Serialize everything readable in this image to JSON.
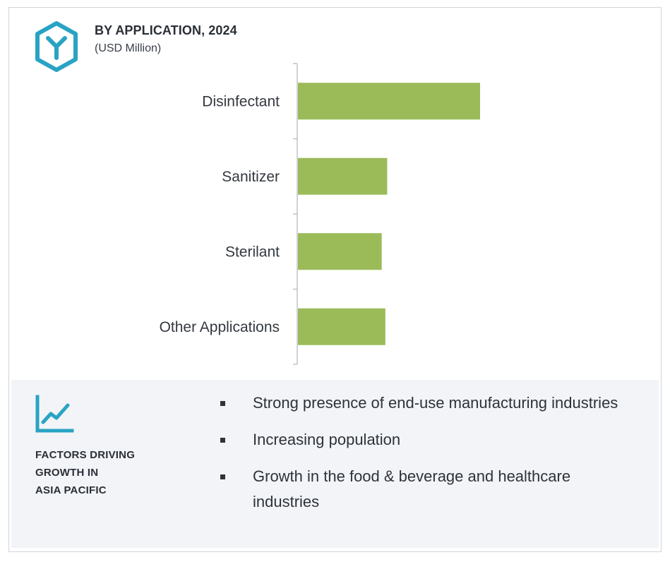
{
  "header": {
    "title": "BY APPLICATION, 2024",
    "subtitle": "(USD Million)"
  },
  "colors": {
    "bar": "#9bbb59",
    "accent": "#29a3c4",
    "axis": "#bfc3c9",
    "panel_bg": "#f2f4f8"
  },
  "icons": {
    "logo": "hexagon-y-logo-icon",
    "trend": "line-chart-icon"
  },
  "chart_data": {
    "type": "bar",
    "orientation": "horizontal",
    "title": "BY APPLICATION, 2024",
    "subtitle": "(USD Million)",
    "xlabel": "",
    "ylabel": "",
    "categories": [
      "Disinfectant",
      "Sanitizer",
      "Sterilant",
      "Other Applications"
    ],
    "values": [
      100,
      49,
      46,
      48
    ],
    "xlim": [
      0,
      100
    ],
    "grid": false,
    "axis_labels_visible": false
  },
  "factors": {
    "heading_lines": [
      "FACTORS DRIVING",
      "GROWTH IN",
      "ASIA PACIFIC"
    ],
    "items": [
      "Strong presence of end-use manufacturing industries",
      "Increasing population",
      "Growth in the food & beverage and healthcare industries"
    ]
  }
}
